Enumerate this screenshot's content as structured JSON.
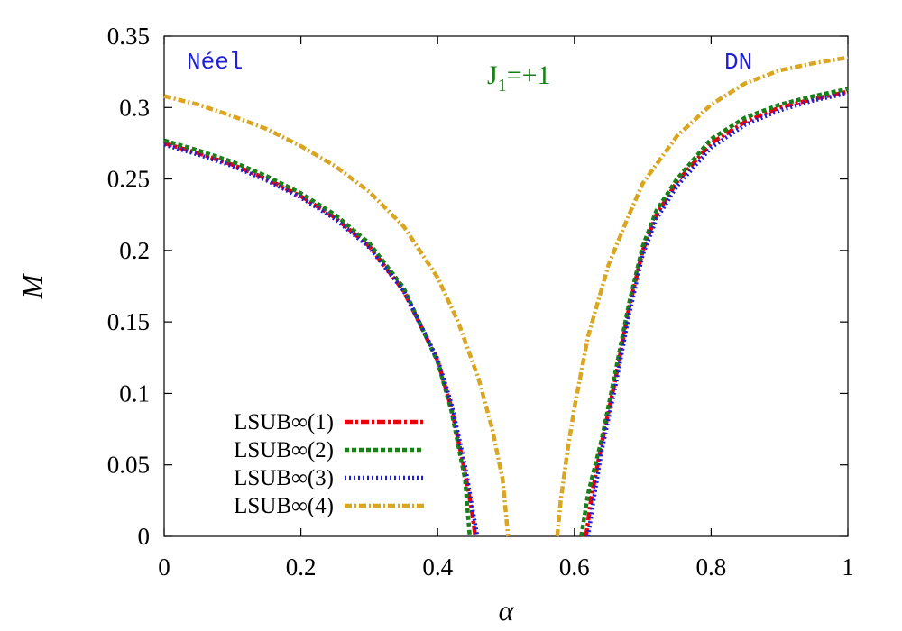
{
  "chart_data": {
    "type": "line",
    "xlabel": "α",
    "ylabel": "M",
    "xlim": [
      0,
      1
    ],
    "ylim": [
      0,
      0.35
    ],
    "x_ticks": [
      "0",
      "0.2",
      "0.4",
      "0.6",
      "0.8",
      "1"
    ],
    "y_ticks": [
      "0",
      "0.05",
      "0.1",
      "0.15",
      "0.2",
      "0.25",
      "0.3",
      "0.35"
    ],
    "grid": false,
    "legend_position": "bottom-left",
    "annotations": {
      "neel": {
        "text": "Néel",
        "color": "#1f1fd6"
      },
      "dn": {
        "text": "DN",
        "color": "#1f1fd6"
      },
      "j_main": {
        "text": "J",
        "color": "#1a7f1a"
      },
      "j_sub": {
        "text": "1",
        "color": "#1a7f1a"
      },
      "j_rest": {
        "text": "=+1",
        "color": "#1a7f1a"
      }
    },
    "series": [
      {
        "name": "LSUB∞(1)",
        "color": "#e8000b",
        "dash": "9 3 3 3",
        "segments": [
          {
            "x": [
              0,
              0.05,
              0.1,
              0.15,
              0.2,
              0.25,
              0.3,
              0.35,
              0.4,
              0.42,
              0.44,
              0.45,
              0.455
            ],
            "y": [
              0.275,
              0.268,
              0.26,
              0.25,
              0.238,
              0.223,
              0.203,
              0.172,
              0.123,
              0.09,
              0.045,
              0.018,
              0
            ]
          },
          {
            "x": [
              0.617,
              0.625,
              0.64,
              0.66,
              0.68,
              0.7,
              0.72,
              0.75,
              0.8,
              0.85,
              0.9,
              0.95,
              1.0
            ],
            "y": [
              0,
              0.028,
              0.065,
              0.11,
              0.16,
              0.2,
              0.225,
              0.248,
              0.275,
              0.29,
              0.3,
              0.306,
              0.311
            ]
          }
        ]
      },
      {
        "name": "LSUB∞(2)",
        "color": "#1a7f1a",
        "dash": "5 3",
        "segments": [
          {
            "x": [
              0,
              0.05,
              0.1,
              0.15,
              0.2,
              0.25,
              0.3,
              0.35,
              0.4,
              0.42,
              0.44,
              0.447
            ],
            "y": [
              0.277,
              0.27,
              0.262,
              0.252,
              0.24,
              0.225,
              0.205,
              0.174,
              0.122,
              0.088,
              0.04,
              0
            ]
          },
          {
            "x": [
              0.61,
              0.615,
              0.62,
              0.64,
              0.66,
              0.68,
              0.7,
              0.72,
              0.75,
              0.8,
              0.85,
              0.9,
              0.95,
              1.0
            ],
            "y": [
              0,
              0.015,
              0.03,
              0.068,
              0.115,
              0.163,
              0.203,
              0.228,
              0.25,
              0.278,
              0.293,
              0.302,
              0.308,
              0.313
            ]
          }
        ]
      },
      {
        "name": "LSUB∞(3)",
        "color": "#1f1fd6",
        "dash": "2 3",
        "segments": [
          {
            "x": [
              0,
              0.05,
              0.1,
              0.15,
              0.2,
              0.25,
              0.3,
              0.35,
              0.4,
              0.42,
              0.44,
              0.45,
              0.458
            ],
            "y": [
              0.274,
              0.267,
              0.259,
              0.249,
              0.237,
              0.222,
              0.202,
              0.172,
              0.124,
              0.093,
              0.05,
              0.022,
              0
            ]
          },
          {
            "x": [
              0.62,
              0.628,
              0.64,
              0.66,
              0.68,
              0.7,
              0.72,
              0.75,
              0.8,
              0.85,
              0.9,
              0.95,
              1.0
            ],
            "y": [
              0,
              0.025,
              0.06,
              0.105,
              0.155,
              0.197,
              0.222,
              0.245,
              0.272,
              0.288,
              0.298,
              0.305,
              0.31
            ]
          }
        ]
      },
      {
        "name": "LSUB∞(4)",
        "color": "#daa520",
        "dash": "8 3 2 3",
        "segments": [
          {
            "x": [
              0,
              0.05,
              0.1,
              0.15,
              0.2,
              0.25,
              0.3,
              0.35,
              0.4,
              0.43,
              0.46,
              0.48,
              0.495,
              0.503
            ],
            "y": [
              0.308,
              0.302,
              0.294,
              0.285,
              0.273,
              0.259,
              0.241,
              0.217,
              0.181,
              0.15,
              0.11,
              0.075,
              0.04,
              0
            ]
          },
          {
            "x": [
              0.575,
              0.58,
              0.59,
              0.6,
              0.62,
              0.65,
              0.68,
              0.7,
              0.75,
              0.8,
              0.85,
              0.9,
              0.95,
              1.0
            ],
            "y": [
              0,
              0.025,
              0.06,
              0.09,
              0.14,
              0.19,
              0.225,
              0.247,
              0.28,
              0.302,
              0.317,
              0.326,
              0.331,
              0.335
            ]
          }
        ]
      }
    ]
  }
}
